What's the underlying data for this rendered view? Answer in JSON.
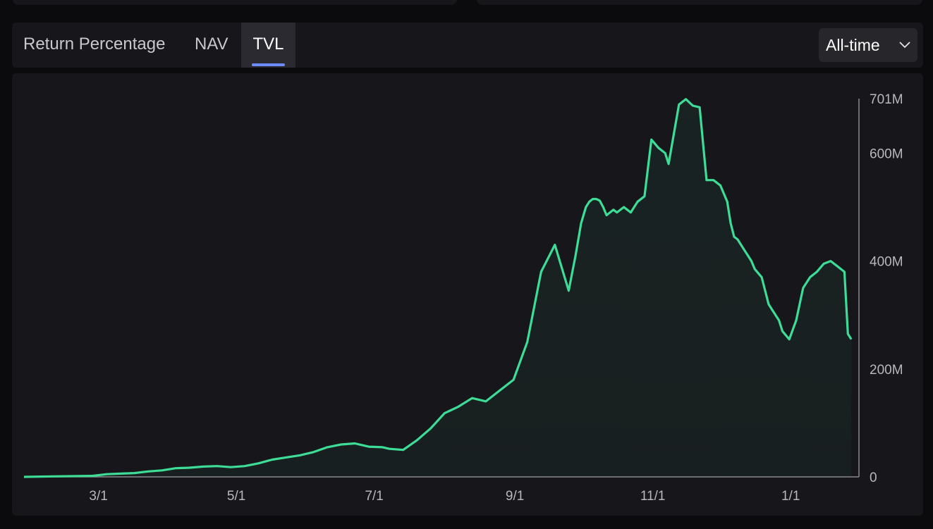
{
  "tabs": [
    {
      "label": "Return Percentage",
      "active": false
    },
    {
      "label": "NAV",
      "active": false
    },
    {
      "label": "TVL",
      "active": true
    }
  ],
  "time_range": {
    "selected": "All-time"
  },
  "colors": {
    "line": "#3ddc97",
    "accent_tab": "#6c8cff",
    "background": "#17171b"
  },
  "chart_data": {
    "type": "area",
    "y_unit": "M",
    "ylim": [
      0,
      701
    ],
    "y_ticks": [
      {
        "value": 0,
        "label": "0"
      },
      {
        "value": 200,
        "label": "200M"
      },
      {
        "value": 400,
        "label": "400M"
      },
      {
        "value": 600,
        "label": "600M"
      },
      {
        "value": 701,
        "label": "701M"
      }
    ],
    "x_ticks": [
      "3/1",
      "5/1",
      "7/1",
      "9/1",
      "11/1",
      "1/1"
    ],
    "x_tick_positions": [
      1.08,
      3.08,
      5.08,
      7.12,
      9.12,
      11.12
    ],
    "xlim": [
      0,
      12.1
    ],
    "grid": false,
    "series": [
      {
        "x": [
          0,
          0.5,
          1.0,
          1.2,
          1.4,
          1.6,
          1.8,
          2.0,
          2.2,
          2.4,
          2.6,
          2.8,
          3.0,
          3.2,
          3.4,
          3.6,
          3.8,
          4.0,
          4.2,
          4.4,
          4.6,
          4.8,
          5.0,
          5.2,
          5.3,
          5.5,
          5.7,
          5.9,
          6.1,
          6.3,
          6.5,
          6.7,
          6.9,
          7.1,
          7.3,
          7.5,
          7.7,
          7.9,
          8.0,
          8.08,
          8.15,
          8.2,
          8.25,
          8.3,
          8.35,
          8.4,
          8.45,
          8.55,
          8.6,
          8.7,
          8.8,
          8.9,
          9.0,
          9.1,
          9.2,
          9.3,
          9.35,
          9.5,
          9.6,
          9.7,
          9.8,
          9.9,
          10.0,
          10.1,
          10.2,
          10.25,
          10.3,
          10.35,
          10.4,
          10.45,
          10.5,
          10.55,
          10.6,
          10.7,
          10.8,
          10.9,
          10.95,
          11.0,
          11.1,
          11.2,
          11.3,
          11.4,
          11.5,
          11.6,
          11.7,
          11.8,
          11.9,
          11.95,
          12.0
        ],
        "values": [
          0,
          1,
          2,
          5,
          6,
          7,
          10,
          12,
          16,
          17,
          19,
          20,
          18,
          20,
          25,
          32,
          36,
          40,
          46,
          55,
          60,
          62,
          56,
          55,
          52,
          50,
          68,
          90,
          118,
          130,
          146,
          140,
          160,
          180,
          250,
          380,
          430,
          345,
          410,
          470,
          500,
          510,
          515,
          515,
          512,
          500,
          485,
          495,
          490,
          500,
          490,
          510,
          520,
          625,
          610,
          600,
          580,
          690,
          700,
          688,
          685,
          550,
          550,
          540,
          510,
          470,
          445,
          440,
          430,
          420,
          410,
          400,
          385,
          370,
          320,
          300,
          290,
          270,
          255,
          290,
          350,
          370,
          380,
          395,
          400,
          390,
          380,
          265,
          255
        ]
      }
    ]
  }
}
